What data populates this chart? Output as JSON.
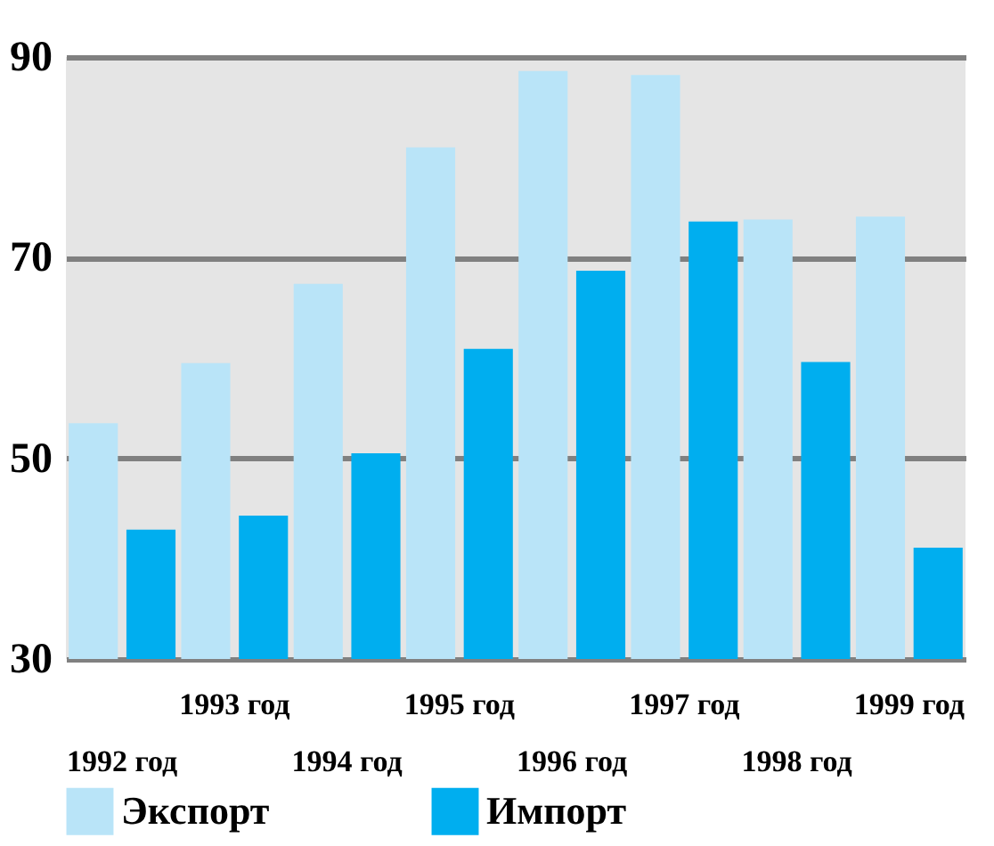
{
  "chart_data": {
    "type": "bar",
    "categories": [
      "1992 год",
      "1993 год",
      "1994 год",
      "1995 год",
      "1996 год",
      "1997 год",
      "1998 год",
      "1999 год"
    ],
    "series": [
      {
        "name": "Экспорт",
        "color": "#b9e4f8",
        "values": [
          53.5,
          59.5,
          67.4,
          81.0,
          88.6,
          88.2,
          73.8,
          74.1
        ]
      },
      {
        "name": "Импорт",
        "color": "#00aeef",
        "values": [
          42.9,
          44.3,
          50.5,
          60.9,
          68.7,
          73.6,
          59.6,
          41.1
        ]
      }
    ],
    "ylim": [
      30,
      90
    ],
    "yticks": [
      30,
      50,
      70,
      90
    ],
    "grid": "y",
    "legend": "bottom"
  }
}
